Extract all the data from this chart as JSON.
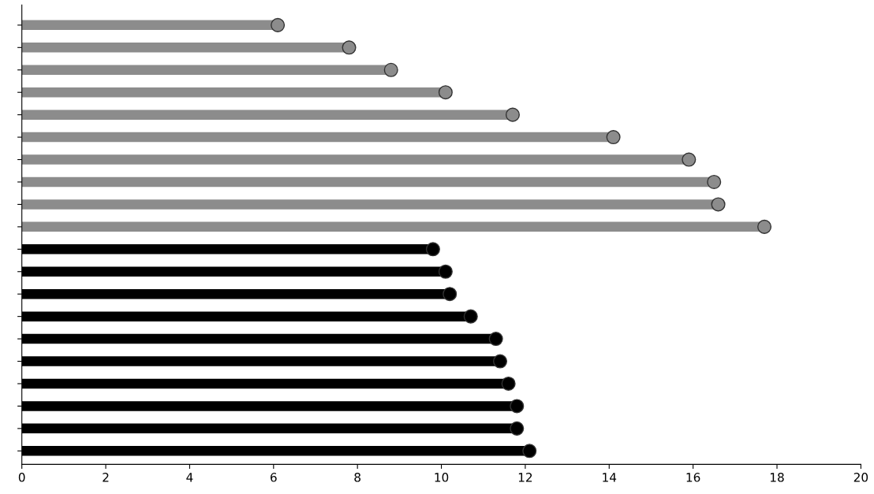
{
  "chart_data": {
    "type": "lollipop",
    "orientation": "horizontal",
    "categories": [
      null,
      null,
      null,
      null,
      null,
      null,
      null,
      null,
      null,
      null,
      null,
      null,
      null,
      null,
      null,
      null,
      null,
      null,
      null,
      null
    ],
    "series": [
      {
        "color": "#8c8c8c",
        "values": [
          6.1,
          7.8,
          8.8,
          10.1,
          11.7,
          14.1,
          15.9,
          16.5,
          16.6,
          17.7,
          null,
          null,
          null,
          null,
          null,
          null,
          null,
          null,
          null,
          null
        ]
      },
      {
        "color": "#000000",
        "values": [
          null,
          null,
          null,
          null,
          null,
          null,
          null,
          null,
          null,
          null,
          9.8,
          10.1,
          10.2,
          10.7,
          11.3,
          11.4,
          11.6,
          11.8,
          11.8,
          12.1
        ]
      }
    ],
    "xlim": [
      0,
      20
    ],
    "xticks": [
      0,
      2,
      4,
      6,
      8,
      10,
      12,
      14,
      16,
      18,
      20
    ],
    "marker": "circle",
    "grid": false,
    "tick_labels": "x"
  }
}
